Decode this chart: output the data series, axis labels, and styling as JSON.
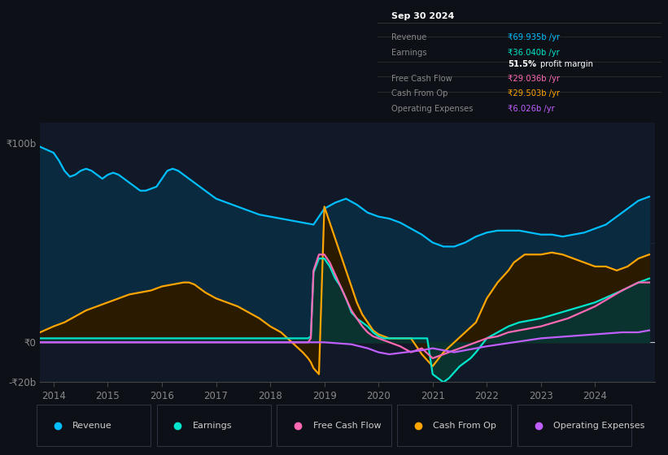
{
  "background_color": "#0d1117",
  "plot_bg_color": "#111827",
  "ylim": [
    -20,
    110
  ],
  "revenue": {
    "color": "#00bfff",
    "fill_color": "#0a2a40",
    "x": [
      2013.75,
      2014.0,
      2014.1,
      2014.2,
      2014.3,
      2014.4,
      2014.5,
      2014.6,
      2014.7,
      2014.8,
      2014.9,
      2015.0,
      2015.1,
      2015.2,
      2015.3,
      2015.4,
      2015.5,
      2015.6,
      2015.7,
      2015.8,
      2015.9,
      2016.0,
      2016.1,
      2016.2,
      2016.3,
      2016.4,
      2016.5,
      2016.6,
      2016.7,
      2016.8,
      2016.9,
      2017.0,
      2017.2,
      2017.4,
      2017.6,
      2017.8,
      2018.0,
      2018.2,
      2018.4,
      2018.6,
      2018.8,
      2019.0,
      2019.2,
      2019.4,
      2019.6,
      2019.8,
      2020.0,
      2020.2,
      2020.4,
      2020.6,
      2020.8,
      2021.0,
      2021.2,
      2021.4,
      2021.6,
      2021.8,
      2022.0,
      2022.2,
      2022.4,
      2022.6,
      2022.8,
      2023.0,
      2023.2,
      2023.4,
      2023.6,
      2023.8,
      2024.0,
      2024.2,
      2024.4,
      2024.6,
      2024.8,
      2025.0
    ],
    "y": [
      98,
      95,
      91,
      86,
      83,
      84,
      86,
      87,
      86,
      84,
      82,
      84,
      85,
      84,
      82,
      80,
      78,
      76,
      76,
      77,
      78,
      82,
      86,
      87,
      86,
      84,
      82,
      80,
      78,
      76,
      74,
      72,
      70,
      68,
      66,
      64,
      63,
      62,
      61,
      60,
      59,
      67,
      70,
      72,
      69,
      65,
      63,
      62,
      60,
      57,
      54,
      50,
      48,
      48,
      50,
      53,
      55,
      56,
      56,
      56,
      55,
      54,
      54,
      53,
      54,
      55,
      57,
      59,
      63,
      67,
      71,
      73
    ]
  },
  "earnings": {
    "color": "#00e5cc",
    "fill_color": "#0a3330",
    "x": [
      2013.75,
      2014.0,
      2014.5,
      2015.0,
      2015.5,
      2016.0,
      2016.5,
      2017.0,
      2017.5,
      2017.8,
      2018.0,
      2018.1,
      2018.2,
      2018.3,
      2018.4,
      2018.5,
      2018.6,
      2018.7,
      2018.75,
      2018.8,
      2018.9,
      2019.0,
      2019.05,
      2019.1,
      2019.15,
      2019.2,
      2019.3,
      2019.4,
      2019.5,
      2019.6,
      2019.7,
      2019.8,
      2019.9,
      2020.0,
      2020.1,
      2020.2,
      2020.3,
      2020.4,
      2020.5,
      2020.6,
      2020.7,
      2020.8,
      2020.9,
      2021.0,
      2021.1,
      2021.2,
      2021.3,
      2021.4,
      2021.5,
      2021.6,
      2021.7,
      2021.8,
      2022.0,
      2022.2,
      2022.4,
      2022.6,
      2023.0,
      2023.5,
      2024.0,
      2024.5,
      2024.8,
      2025.0
    ],
    "y": [
      2,
      2,
      2,
      2,
      2,
      2,
      2,
      2,
      2,
      2,
      2,
      2,
      2,
      2,
      2,
      2,
      2,
      2,
      3,
      35,
      42,
      42,
      40,
      38,
      35,
      32,
      28,
      22,
      15,
      12,
      10,
      8,
      5,
      3,
      2,
      2,
      2,
      2,
      2,
      2,
      2,
      2,
      2,
      -16,
      -18,
      -20,
      -18,
      -15,
      -12,
      -10,
      -8,
      -5,
      2,
      5,
      8,
      10,
      12,
      16,
      20,
      26,
      30,
      32
    ]
  },
  "free_cash_flow": {
    "color": "#ff69b4",
    "x": [
      2013.75,
      2014.0,
      2014.5,
      2015.0,
      2015.5,
      2016.0,
      2016.5,
      2017.0,
      2017.5,
      2017.8,
      2018.0,
      2018.1,
      2018.2,
      2018.3,
      2018.4,
      2018.5,
      2018.6,
      2018.7,
      2018.75,
      2018.8,
      2018.9,
      2019.0,
      2019.05,
      2019.1,
      2019.15,
      2019.2,
      2019.3,
      2019.4,
      2019.5,
      2019.6,
      2019.7,
      2019.8,
      2019.9,
      2020.0,
      2020.2,
      2020.4,
      2020.6,
      2020.8,
      2021.0,
      2021.2,
      2021.4,
      2021.6,
      2021.8,
      2022.0,
      2022.2,
      2022.4,
      2022.6,
      2023.0,
      2023.5,
      2024.0,
      2024.5,
      2024.8,
      2025.0
    ],
    "y": [
      0,
      0,
      0,
      0,
      0,
      0,
      0,
      0,
      0,
      0,
      0,
      0,
      0,
      0,
      0,
      0,
      0,
      0,
      2,
      36,
      44,
      44,
      42,
      40,
      37,
      34,
      28,
      22,
      16,
      12,
      8,
      5,
      3,
      2,
      0,
      -2,
      -5,
      -3,
      -8,
      -6,
      -4,
      -2,
      0,
      2,
      3,
      5,
      6,
      8,
      12,
      18,
      26,
      30,
      30
    ]
  },
  "cash_from_op": {
    "color": "#ffa500",
    "fill_color": "#2a1a00",
    "x": [
      2013.75,
      2014.0,
      2014.2,
      2014.4,
      2014.6,
      2014.8,
      2015.0,
      2015.2,
      2015.4,
      2015.6,
      2015.8,
      2016.0,
      2016.2,
      2016.4,
      2016.5,
      2016.6,
      2016.7,
      2016.8,
      2017.0,
      2017.2,
      2017.4,
      2017.6,
      2017.8,
      2018.0,
      2018.2,
      2018.4,
      2018.6,
      2018.7,
      2018.75,
      2018.8,
      2018.9,
      2019.0,
      2019.1,
      2019.2,
      2019.3,
      2019.4,
      2019.5,
      2019.6,
      2019.7,
      2019.8,
      2019.9,
      2020.0,
      2020.2,
      2020.4,
      2020.6,
      2020.8,
      2021.0,
      2021.2,
      2021.4,
      2021.6,
      2021.8,
      2022.0,
      2022.2,
      2022.4,
      2022.5,
      2022.6,
      2022.7,
      2022.8,
      2023.0,
      2023.2,
      2023.4,
      2023.6,
      2023.8,
      2024.0,
      2024.2,
      2024.4,
      2024.6,
      2024.8,
      2025.0
    ],
    "y": [
      5,
      8,
      10,
      13,
      16,
      18,
      20,
      22,
      24,
      25,
      26,
      28,
      29,
      30,
      30,
      29,
      27,
      25,
      22,
      20,
      18,
      15,
      12,
      8,
      5,
      0,
      -5,
      -8,
      -10,
      -13,
      -16,
      68,
      60,
      52,
      44,
      36,
      28,
      20,
      14,
      10,
      6,
      4,
      2,
      2,
      2,
      -6,
      -12,
      -5,
      0,
      5,
      10,
      22,
      30,
      36,
      40,
      42,
      44,
      44,
      44,
      45,
      44,
      42,
      40,
      38,
      38,
      36,
      38,
      42,
      44
    ]
  },
  "operating_expenses": {
    "color": "#bf5fff",
    "x": [
      2013.75,
      2014.0,
      2015.0,
      2016.0,
      2017.0,
      2018.0,
      2019.0,
      2019.5,
      2019.8,
      2020.0,
      2020.2,
      2020.5,
      2020.8,
      2021.0,
      2021.2,
      2021.4,
      2021.6,
      2021.8,
      2022.0,
      2022.5,
      2023.0,
      2023.5,
      2024.0,
      2024.5,
      2024.8,
      2025.0
    ],
    "y": [
      0,
      0,
      0,
      0,
      0,
      0,
      0,
      -1,
      -3,
      -5,
      -6,
      -5,
      -4,
      -3,
      -4,
      -5,
      -4,
      -3,
      -2,
      0,
      2,
      3,
      4,
      5,
      5,
      6
    ]
  },
  "legend": [
    {
      "label": "Revenue",
      "color": "#00bfff"
    },
    {
      "label": "Earnings",
      "color": "#00e5cc"
    },
    {
      "label": "Free Cash Flow",
      "color": "#ff69b4"
    },
    {
      "label": "Cash From Op",
      "color": "#ffa500"
    },
    {
      "label": "Operating Expenses",
      "color": "#bf5fff"
    }
  ],
  "info_box": {
    "date": "Sep 30 2024",
    "rows": [
      {
        "label": "Revenue",
        "value": "₹69.935b /yr",
        "value_color": "#00bfff"
      },
      {
        "label": "Earnings",
        "value": "₹36.040b /yr",
        "value_color": "#00e5cc"
      },
      {
        "label": "",
        "value": "51.5% profit margin",
        "value_color": "#ffffff",
        "bold": true
      },
      {
        "label": "Free Cash Flow",
        "value": "₹29.036b /yr",
        "value_color": "#ff69b4"
      },
      {
        "label": "Cash From Op",
        "value": "₹29.503b /yr",
        "value_color": "#ffa500"
      },
      {
        "label": "Operating Expenses",
        "value": "₹6.026b /yr",
        "value_color": "#bf5fff"
      }
    ]
  }
}
